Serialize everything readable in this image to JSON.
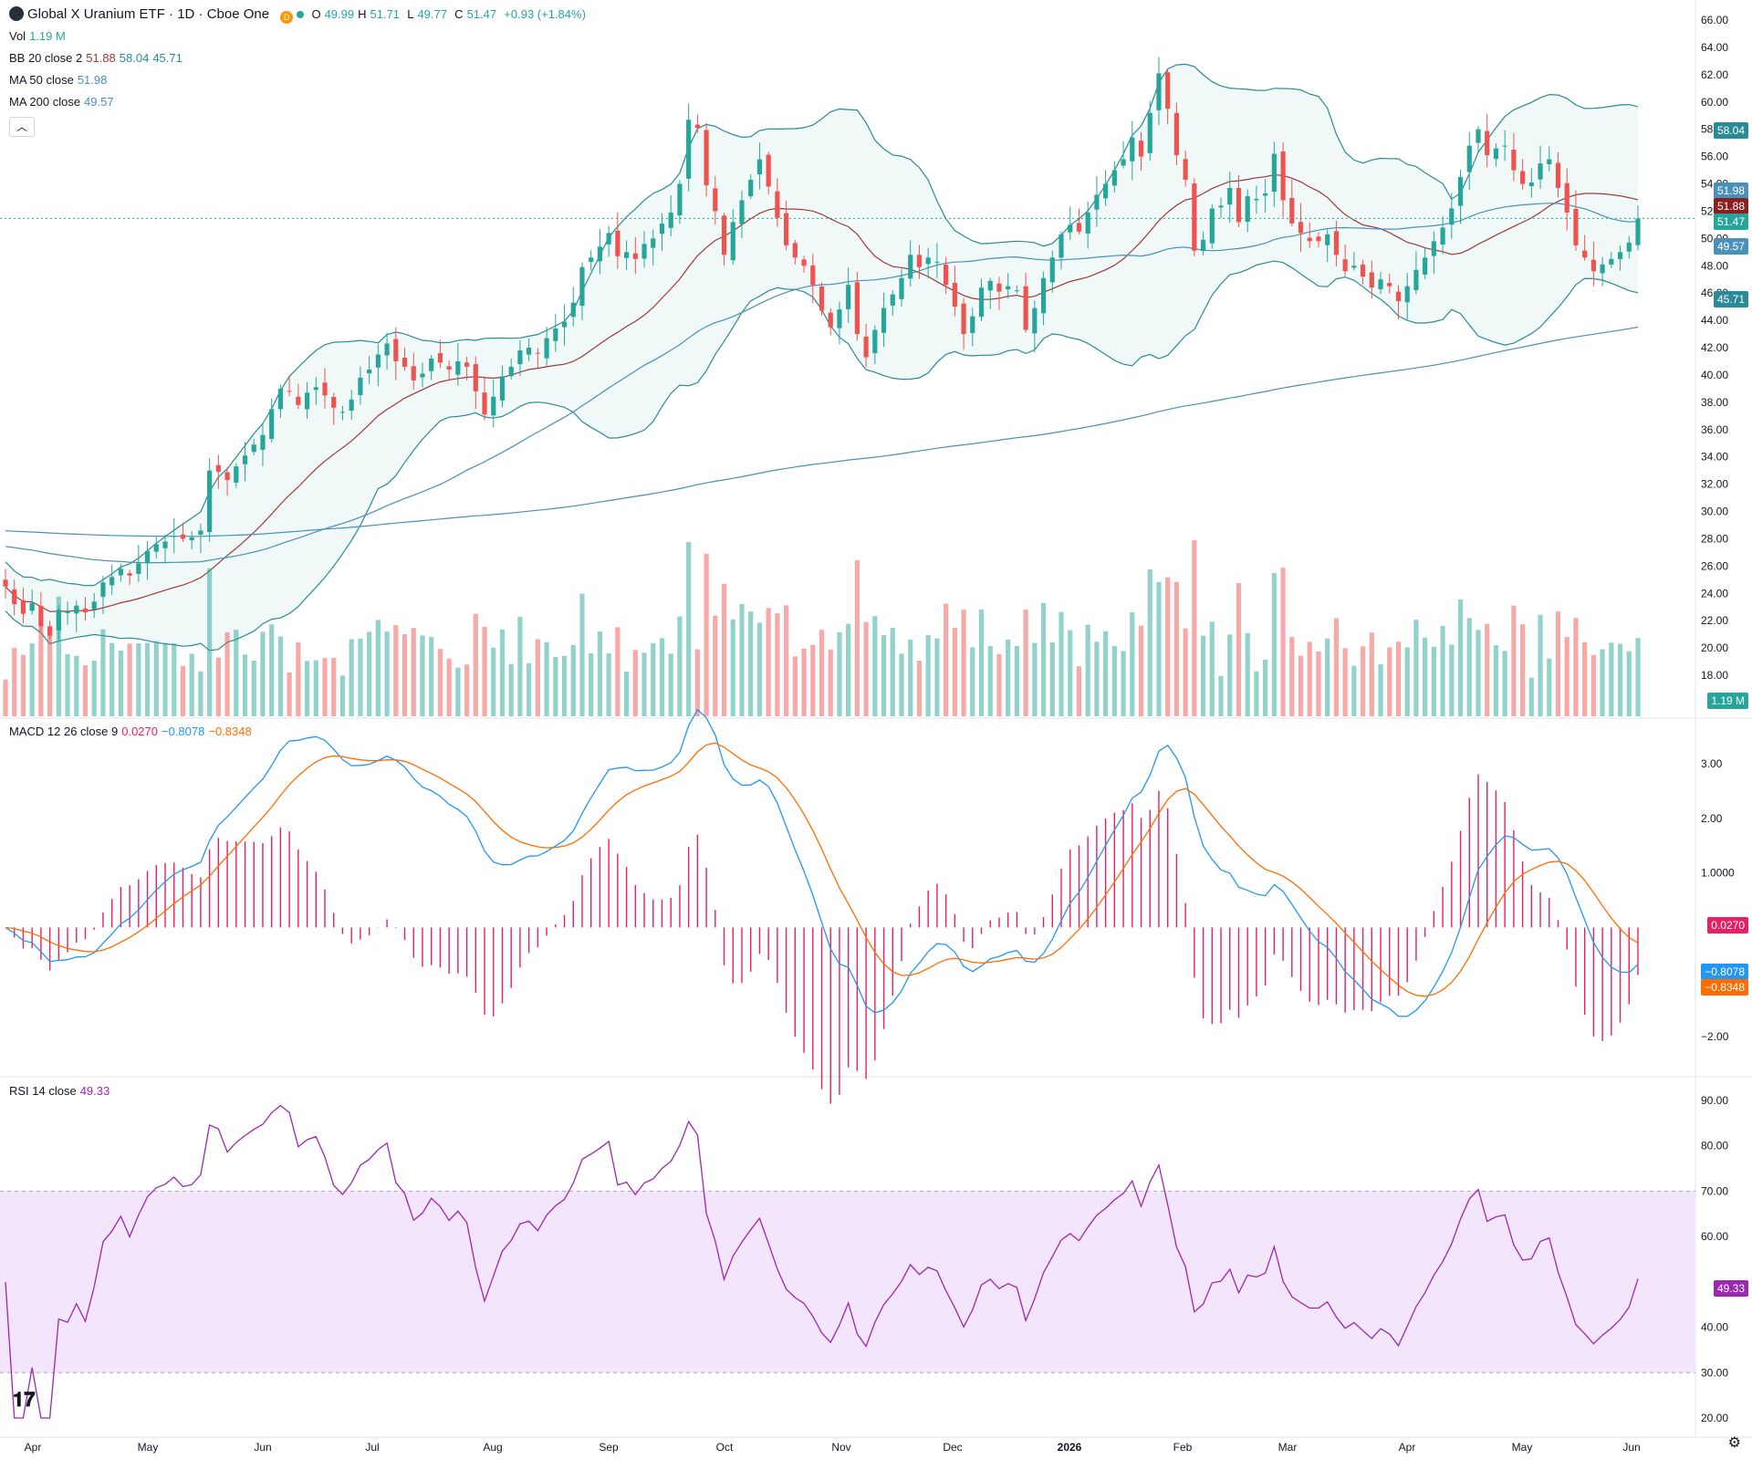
{
  "header": {
    "symbol_name": "Global X Uranium ETF · 1D · Cboe One",
    "open_label": "O",
    "open": "49.99",
    "high_label": "H",
    "high": "51.71",
    "low_label": "L",
    "low": "49.77",
    "close_label": "C",
    "close": "51.47",
    "change": "+0.93 (+1.84%)",
    "d_badge": "D"
  },
  "legends": {
    "vol_label": "Vol",
    "vol_value": "1.19 M",
    "bb_label": "BB 20 close 2",
    "bb_mid": "51.88",
    "bb_upper": "58.04",
    "bb_lower": "45.71",
    "ma50_label": "MA 50 close",
    "ma50_value": "51.98",
    "ma200_label": "MA 200 close",
    "ma200_value": "49.57",
    "macd_label": "MACD 12 26 close 9",
    "macd_hist": "0.0270",
    "macd_line": "−0.8078",
    "macd_signal": "−0.8348",
    "rsi_label": "RSI 14 close",
    "rsi_value": "49.33"
  },
  "price_boxes": {
    "bb_upper": "58.04",
    "ma50": "51.98",
    "bb_mid": "51.88",
    "last": "51.47",
    "ma200": "49.57",
    "bb_lower": "45.71",
    "volume": "1.19 M",
    "macd_hist": "0.0270",
    "macd_line": "−0.8078",
    "macd_signal": "−0.8348",
    "rsi": "49.33"
  },
  "colors": {
    "up": "#26a69a",
    "down": "#ef5350",
    "bb": "#2a8a95",
    "bb_mid": "#9c3a3a",
    "ma": "#4a90b8",
    "macd": "#2196f3",
    "signal": "#ff6d00",
    "hist": "#e91e63",
    "rsi": "#9c27b0",
    "rsi_band": "#f3e5fc"
  },
  "chart_data": [
    {
      "type": "candlestick",
      "title": "Global X Uranium ETF · 1D · Cboe One",
      "x_tick_labels": [
        "Apr",
        "May",
        "Jun",
        "Jul",
        "Aug",
        "Sep",
        "Oct",
        "Nov",
        "Dec",
        "2026",
        "Feb",
        "Mar",
        "Apr",
        "May",
        "Jun"
      ],
      "y_tick_labels": [
        "66.00",
        "64.00",
        "62.00",
        "60.00",
        "58.00",
        "56.00",
        "54.00",
        "52.00",
        "50.00",
        "48.00",
        "46.00",
        "44.00",
        "42.00",
        "40.00",
        "38.00",
        "36.00",
        "34.00",
        "32.00",
        "30.00",
        "28.00",
        "26.00",
        "24.00",
        "22.00",
        "20.00",
        "18.00"
      ],
      "ylim": [
        16.4,
        66.6
      ],
      "close_series": [
        24.5,
        23.2,
        22.5,
        23.3,
        21.6,
        20.9,
        22.8,
        22.7,
        23.1,
        22.6,
        23.4,
        24.8,
        25.2,
        25.8,
        25.3,
        26.2,
        27.1,
        27.6,
        27.8,
        28.2,
        28.0,
        28.1,
        28.6,
        33.0,
        32.9,
        32.3,
        33.3,
        34.1,
        34.9,
        35.6,
        37.5,
        39.0,
        38.8,
        37.8,
        38.7,
        39.1,
        38.5,
        37.6,
        37.3,
        38.2,
        39.8,
        40.4,
        41.5,
        42.3,
        41.0,
        40.6,
        39.6,
        40.1,
        41.2,
        40.9,
        40.4,
        41.0,
        40.6,
        38.8,
        37.1,
        38.4,
        39.9,
        40.6,
        41.8,
        42.0,
        41.6,
        42.7,
        43.4,
        43.9,
        45.3,
        47.9,
        48.6,
        49.4,
        50.4,
        48.7,
        49.0,
        48.5,
        49.6,
        50.0,
        51.1,
        51.9,
        54.0,
        58.7,
        58.1,
        53.9,
        52.0,
        48.8,
        51.2,
        52.8,
        54.3,
        55.8,
        53.8,
        51.5,
        49.5,
        48.6,
        48.0,
        46.6,
        44.7,
        43.5,
        44.8,
        46.6,
        43.0,
        41.3,
        43.3,
        44.9,
        45.9,
        47.1,
        48.8,
        47.9,
        48.6,
        48.3,
        46.6,
        45.0,
        43.0,
        44.3,
        46.4,
        46.9,
        46.1,
        46.5,
        46.2,
        43.3,
        44.9,
        47.1,
        48.6,
        50.3,
        51.0,
        50.5,
        51.9,
        53.2,
        54.0,
        55.0,
        55.8,
        57.4,
        56.0,
        59.2,
        62.1,
        59.5,
        56.1,
        54.3,
        49.1,
        49.9,
        52.2,
        52.4,
        53.7,
        51.2,
        53.1,
        52.9,
        53.3,
        56.2,
        52.8,
        51.1,
        50.4,
        49.8,
        49.8,
        50.3,
        48.8,
        47.6,
        48.0,
        47.2,
        46.4,
        47.0,
        46.5,
        45.4,
        46.5,
        47.7,
        48.6,
        49.8,
        50.8,
        52.2,
        54.5,
        56.8,
        58.0,
        56.1,
        56.6,
        56.8,
        55.0,
        54.0,
        54.1,
        55.5,
        55.8,
        53.7,
        51.9,
        49.5,
        48.6,
        47.6,
        48.1,
        48.5,
        49.0,
        49.7,
        51.47
      ],
      "bollinger": {
        "upper": 58.04,
        "middle": 51.88,
        "lower": 45.71
      },
      "ma50": 51.98,
      "ma200": 49.57,
      "last_price": 51.47
    },
    {
      "type": "bar",
      "title": "Vol",
      "last_value": "1.19 M"
    },
    {
      "type": "line",
      "title": "MACD 12 26 close 9",
      "y_tick_labels": [
        "3.00",
        "2.00",
        "1.0000",
        "−2.00"
      ],
      "ylim": [
        -2.6,
        3.3
      ],
      "series": [
        {
          "name": "MACD",
          "last": -0.8078
        },
        {
          "name": "Signal",
          "last": -0.8348
        },
        {
          "name": "Histogram",
          "last": 0.027
        }
      ]
    },
    {
      "type": "line",
      "title": "RSI 14 close",
      "y_tick_labels": [
        "90.00",
        "80.00",
        "70.00",
        "60.00",
        "40.00",
        "30.00",
        "20.00"
      ],
      "ylim": [
        18,
        93
      ],
      "band": [
        30,
        70
      ],
      "last": 49.33
    }
  ]
}
